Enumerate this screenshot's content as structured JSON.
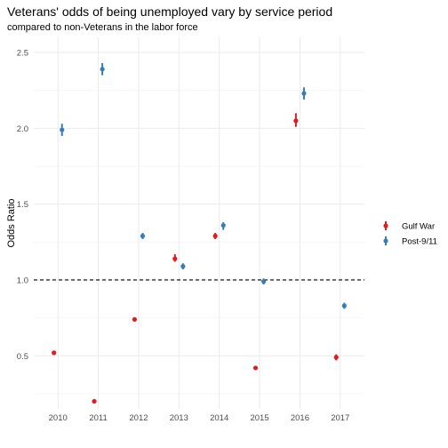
{
  "chart_data": {
    "type": "scatter",
    "title": "Veterans' odds of being unemployed vary by service period",
    "subtitle": "compared to non-Veterans in the labor force",
    "xlabel": "",
    "ylabel": "Odds Ratio",
    "x_ticks": [
      "2010",
      "2011",
      "2012",
      "2013",
      "2014",
      "2015",
      "2016",
      "2017"
    ],
    "y_ticks": [
      "0.5",
      "1.0",
      "1.5",
      "2.0",
      "2.5"
    ],
    "ylim": [
      0.15,
      2.6
    ],
    "reference_line": 1.0,
    "grid": true,
    "legend_position": "right",
    "series": [
      {
        "name": "Gulf War",
        "color": "#e41a1c",
        "points": [
          {
            "x": 2010,
            "y": 0.52,
            "lo": 0.51,
            "hi": 0.53
          },
          {
            "x": 2011,
            "y": 0.2,
            "lo": 0.195,
            "hi": 0.205
          },
          {
            "x": 2012,
            "y": 0.74,
            "lo": 0.73,
            "hi": 0.75
          },
          {
            "x": 2013,
            "y": 1.14,
            "lo": 1.12,
            "hi": 1.17
          },
          {
            "x": 2014,
            "y": 1.29,
            "lo": 1.27,
            "hi": 1.31
          },
          {
            "x": 2015,
            "y": 0.42,
            "lo": 0.41,
            "hi": 0.43
          },
          {
            "x": 2016,
            "y": 2.05,
            "lo": 2.01,
            "hi": 2.1
          },
          {
            "x": 2017,
            "y": 0.49,
            "lo": 0.47,
            "hi": 0.51
          }
        ]
      },
      {
        "name": "Post-9/11",
        "color": "#377eb8",
        "points": [
          {
            "x": 2010,
            "y": 1.99,
            "lo": 1.95,
            "hi": 2.03
          },
          {
            "x": 2011,
            "y": 2.39,
            "lo": 2.35,
            "hi": 2.43
          },
          {
            "x": 2012,
            "y": 1.29,
            "lo": 1.27,
            "hi": 1.31
          },
          {
            "x": 2013,
            "y": 1.09,
            "lo": 1.07,
            "hi": 1.11
          },
          {
            "x": 2014,
            "y": 1.36,
            "lo": 1.33,
            "hi": 1.38
          },
          {
            "x": 2015,
            "y": 0.99,
            "lo": 0.97,
            "hi": 1.01
          },
          {
            "x": 2016,
            "y": 2.23,
            "lo": 2.19,
            "hi": 2.27
          },
          {
            "x": 2017,
            "y": 0.83,
            "lo": 0.81,
            "hi": 0.85
          }
        ]
      }
    ]
  }
}
